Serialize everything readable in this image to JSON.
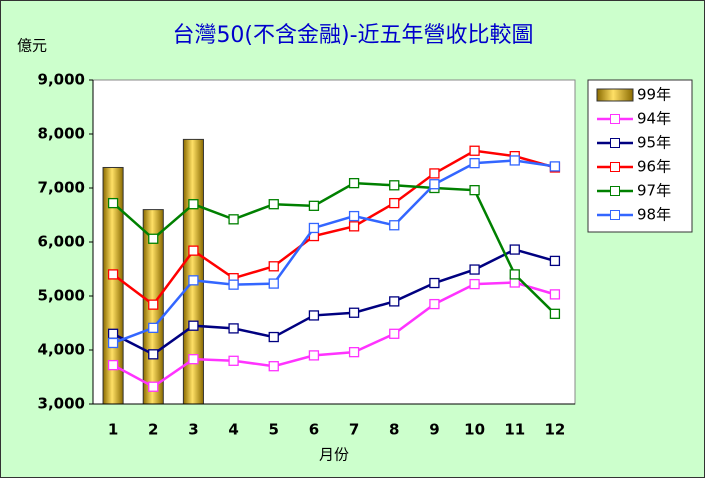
{
  "chart_data": {
    "type": "combo",
    "title": "台灣50(不含金融)-近五年營收比較圖",
    "y_label": "億元",
    "x_label": "月份",
    "categories": [
      "1",
      "2",
      "3",
      "4",
      "5",
      "6",
      "7",
      "8",
      "9",
      "10",
      "11",
      "12"
    ],
    "ylim": [
      3000,
      9000
    ],
    "yticks": [
      {
        "value": 3000,
        "label": "3,000"
      },
      {
        "value": 4000,
        "label": "4,000"
      },
      {
        "value": 5000,
        "label": "5,000"
      },
      {
        "value": 6000,
        "label": "6,000"
      },
      {
        "value": 7000,
        "label": "7,000"
      },
      {
        "value": 8000,
        "label": "8,000"
      },
      {
        "value": 9000,
        "label": "9,000"
      }
    ],
    "grid": false,
    "legend": "right",
    "series": [
      {
        "name": "99年",
        "type": "bar",
        "color": "#d4a017",
        "values": [
          7380,
          6600,
          7900,
          null,
          null,
          null,
          null,
          null,
          null,
          null,
          null,
          null
        ]
      },
      {
        "name": "94年",
        "type": "line",
        "color": "#ff33ff",
        "values": [
          3720,
          3320,
          3830,
          3800,
          3700,
          3900,
          3960,
          4300,
          4850,
          5220,
          5250,
          5030
        ]
      },
      {
        "name": "95年",
        "type": "line",
        "color": "#000080",
        "values": [
          4300,
          3920,
          4450,
          4400,
          4240,
          4640,
          4690,
          4900,
          5240,
          5490,
          5860,
          5650
        ]
      },
      {
        "name": "96年",
        "type": "line",
        "color": "#ff0000",
        "values": [
          5400,
          4840,
          5840,
          5330,
          5550,
          6110,
          6290,
          6720,
          7270,
          7690,
          7590,
          7380
        ]
      },
      {
        "name": "97年",
        "type": "line",
        "color": "#008000",
        "values": [
          6720,
          6060,
          6700,
          6420,
          6700,
          6670,
          7090,
          7050,
          7000,
          6960,
          5400,
          4670
        ]
      },
      {
        "name": "98年",
        "type": "line",
        "color": "#3366ff",
        "values": [
          4130,
          4410,
          5290,
          5210,
          5230,
          6260,
          6480,
          6310,
          7070,
          7460,
          7510,
          7400
        ]
      }
    ]
  }
}
